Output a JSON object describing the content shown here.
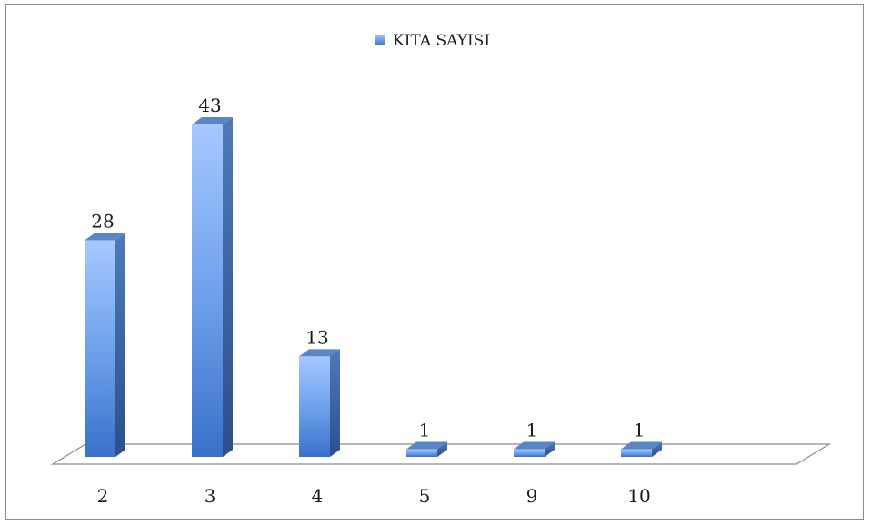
{
  "chart_data": {
    "type": "bar",
    "categories": [
      "2",
      "3",
      "4",
      "5",
      "9",
      "10"
    ],
    "series": [
      {
        "name": "KITA SAYISI",
        "values": [
          28,
          43,
          13,
          1,
          1,
          1
        ]
      }
    ],
    "data_labels": [
      "28",
      "43",
      "13",
      "1",
      "1",
      "1"
    ],
    "ylim": [
      0,
      43
    ],
    "grid": false,
    "legend_position": "top",
    "three_d": true,
    "colors": {
      "bar_light": "#a6c8ff",
      "bar_mid": "#5f95e6",
      "bar_dark": "#3a70c9",
      "bar_side": "#2f5595",
      "bar_top": "#4f79b8",
      "floor_stroke": "#8c8c8c",
      "text": "#1a1a1a"
    }
  }
}
